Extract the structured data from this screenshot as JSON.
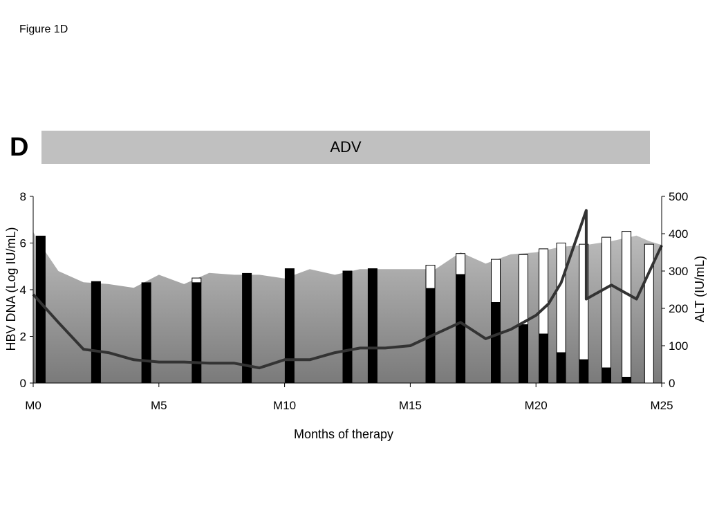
{
  "figure_label": "Figure 1D",
  "panel_letter": "D",
  "treatment_label": "ADV",
  "colors": {
    "treatment_bar": "#c0c0c0",
    "hbv_bar": "#000000",
    "hbv_bar_top": "#ffffff",
    "hbv_line": "#333333",
    "alt_area_top": "#bdbdbd",
    "alt_area_bottom": "#7a7a7a"
  },
  "chart_data": {
    "type": "bar",
    "xlabel": "Months of therapy",
    "ylabel": "HBV DNA (Log IU/mL)",
    "y2label": "ALT (IU/mL)",
    "xlim": [
      0,
      25
    ],
    "ylim": [
      0,
      8
    ],
    "y2lim": [
      0,
      500
    ],
    "x_ticks": [
      0,
      5,
      10,
      15,
      20,
      25
    ],
    "x_tick_labels": [
      "M0",
      "M5",
      "M10",
      "M15",
      "M20",
      "M25"
    ],
    "y_ticks": [
      0,
      2,
      4,
      6,
      8
    ],
    "y_tick_labels": [
      "0",
      "2",
      "4",
      "6",
      "8"
    ],
    "y2_ticks": [
      0,
      100,
      200,
      300,
      400,
      500
    ],
    "y2_tick_labels": [
      "0",
      "100",
      "200",
      "300",
      "400",
      "500"
    ],
    "series": [
      {
        "kind": "area",
        "axis": "right",
        "x": [
          0,
          0.3,
          1,
          2,
          3,
          4,
          5,
          6,
          7,
          8,
          9,
          10,
          11,
          12,
          13,
          14,
          15,
          16,
          17,
          18,
          19,
          20,
          21,
          22,
          23,
          24,
          24.5,
          25
        ],
        "y": [
          405,
          370,
          300,
          270,
          265,
          255,
          290,
          265,
          295,
          290,
          290,
          280,
          305,
          290,
          305,
          305,
          305,
          305,
          350,
          320,
          345,
          350,
          365,
          370,
          380,
          395,
          380,
          370
        ]
      },
      {
        "kind": "bars",
        "axis": "left",
        "x": [
          0.3,
          2.5,
          4.5,
          6.5,
          8.5,
          10.2,
          12.5,
          13.5,
          15.8,
          17,
          18.4,
          19.5,
          20.3,
          21,
          21.9,
          22.8,
          23.6,
          24.5
        ],
        "black": [
          6.3,
          4.35,
          4.3,
          4.3,
          4.7,
          4.9,
          4.8,
          4.9,
          4.05,
          4.65,
          3.45,
          2.5,
          2.1,
          1.3,
          1.0,
          0.65,
          0.25,
          0
        ],
        "total": [
          6.3,
          4.35,
          4.3,
          4.5,
          4.7,
          4.9,
          4.8,
          4.9,
          5.05,
          5.55,
          5.3,
          5.5,
          5.75,
          6.0,
          5.95,
          6.25,
          6.5,
          5.95
        ]
      },
      {
        "kind": "line",
        "axis": "left",
        "x": [
          0,
          1,
          2,
          3,
          4,
          5,
          6,
          7,
          8,
          9,
          10,
          11,
          12,
          13,
          14,
          15,
          16,
          17,
          18,
          19,
          20,
          20.5,
          21,
          22,
          22,
          23,
          24,
          25
        ],
        "y": [
          3.8,
          2.6,
          1.45,
          1.3,
          1.0,
          0.9,
          0.9,
          0.85,
          0.85,
          0.65,
          1.0,
          1.0,
          1.3,
          1.5,
          1.5,
          1.6,
          2.1,
          2.6,
          1.9,
          2.3,
          2.9,
          3.4,
          4.3,
          7.4,
          3.6,
          4.2,
          3.6,
          5.9
        ]
      }
    ]
  }
}
